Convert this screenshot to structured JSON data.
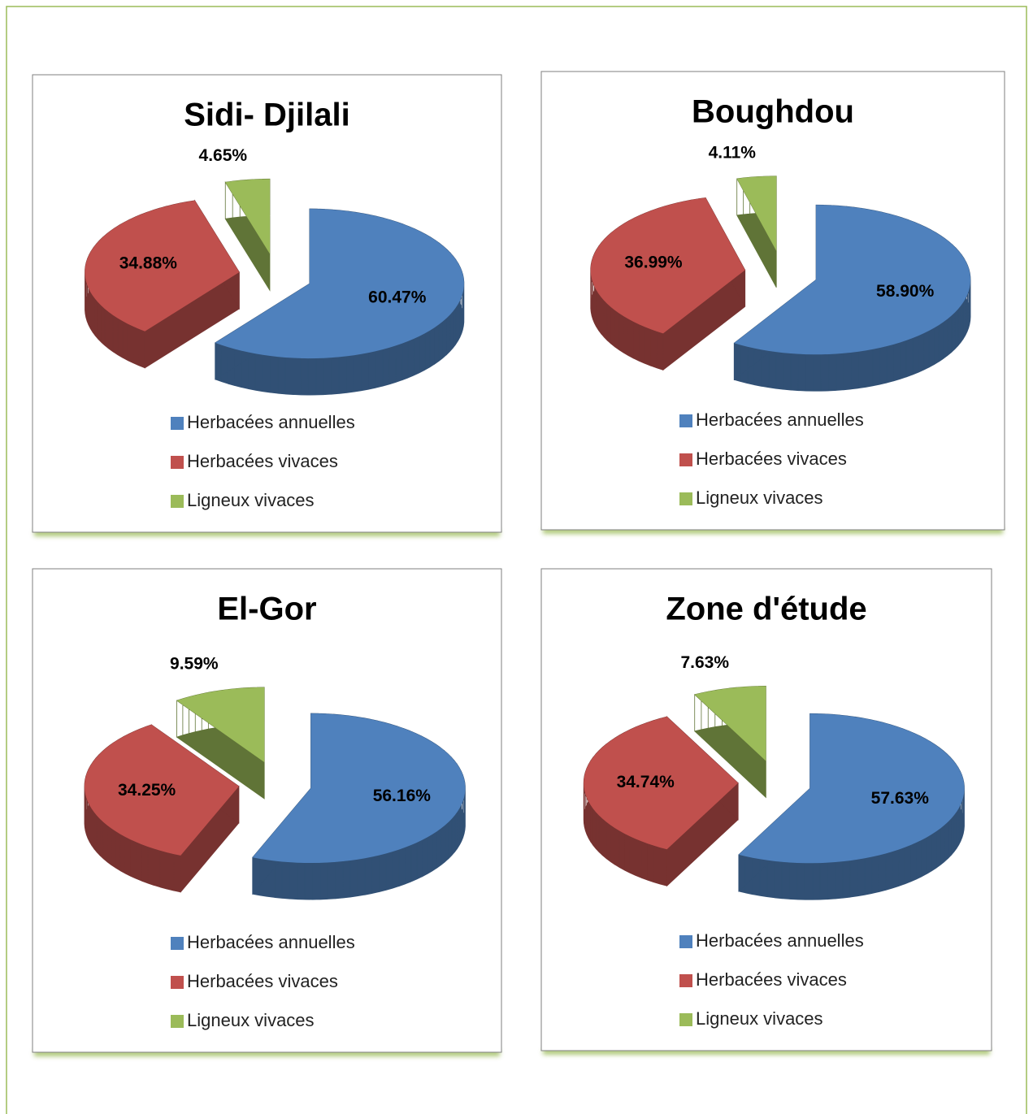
{
  "chart_data": [
    {
      "type": "pie",
      "title": "Sidi- Djilali",
      "categories": [
        "Herbacées annuelles",
        "Herbacées vivaces",
        "Ligneux vivaces"
      ],
      "values": [
        60.47,
        34.88,
        4.65
      ],
      "value_labels": [
        "60.47%",
        "34.88%",
        "4.65%"
      ],
      "colors": [
        "#4f81bd",
        "#c0504d",
        "#9bbb59"
      ],
      "legend": "bottom"
    },
    {
      "type": "pie",
      "title": "Boughdou",
      "categories": [
        "Herbacées annuelles",
        "Herbacées vivaces",
        "Ligneux vivaces"
      ],
      "values": [
        58.9,
        36.99,
        4.11
      ],
      "value_labels": [
        "58.90%",
        "36.99%",
        "4.11%"
      ],
      "colors": [
        "#4f81bd",
        "#c0504d",
        "#9bbb59"
      ],
      "legend": "bottom"
    },
    {
      "type": "pie",
      "title": "El-Gor",
      "categories": [
        "Herbacées annuelles",
        "Herbacées vivaces",
        "Ligneux vivaces"
      ],
      "values": [
        56.16,
        34.25,
        9.59
      ],
      "value_labels": [
        "56.16%",
        "34.25%",
        "9.59%"
      ],
      "colors": [
        "#4f81bd",
        "#c0504d",
        "#9bbb59"
      ],
      "legend": "bottom"
    },
    {
      "type": "pie",
      "title": "Zone d'étude",
      "categories": [
        "Herbacées annuelles",
        "Herbacées vivaces",
        "Ligneux vivaces"
      ],
      "values": [
        57.63,
        34.74,
        7.63
      ],
      "value_labels": [
        "57.63%",
        "34.74%",
        "7.63%"
      ],
      "colors": [
        "#4f81bd",
        "#c0504d",
        "#9bbb59"
      ],
      "legend": "bottom"
    }
  ]
}
